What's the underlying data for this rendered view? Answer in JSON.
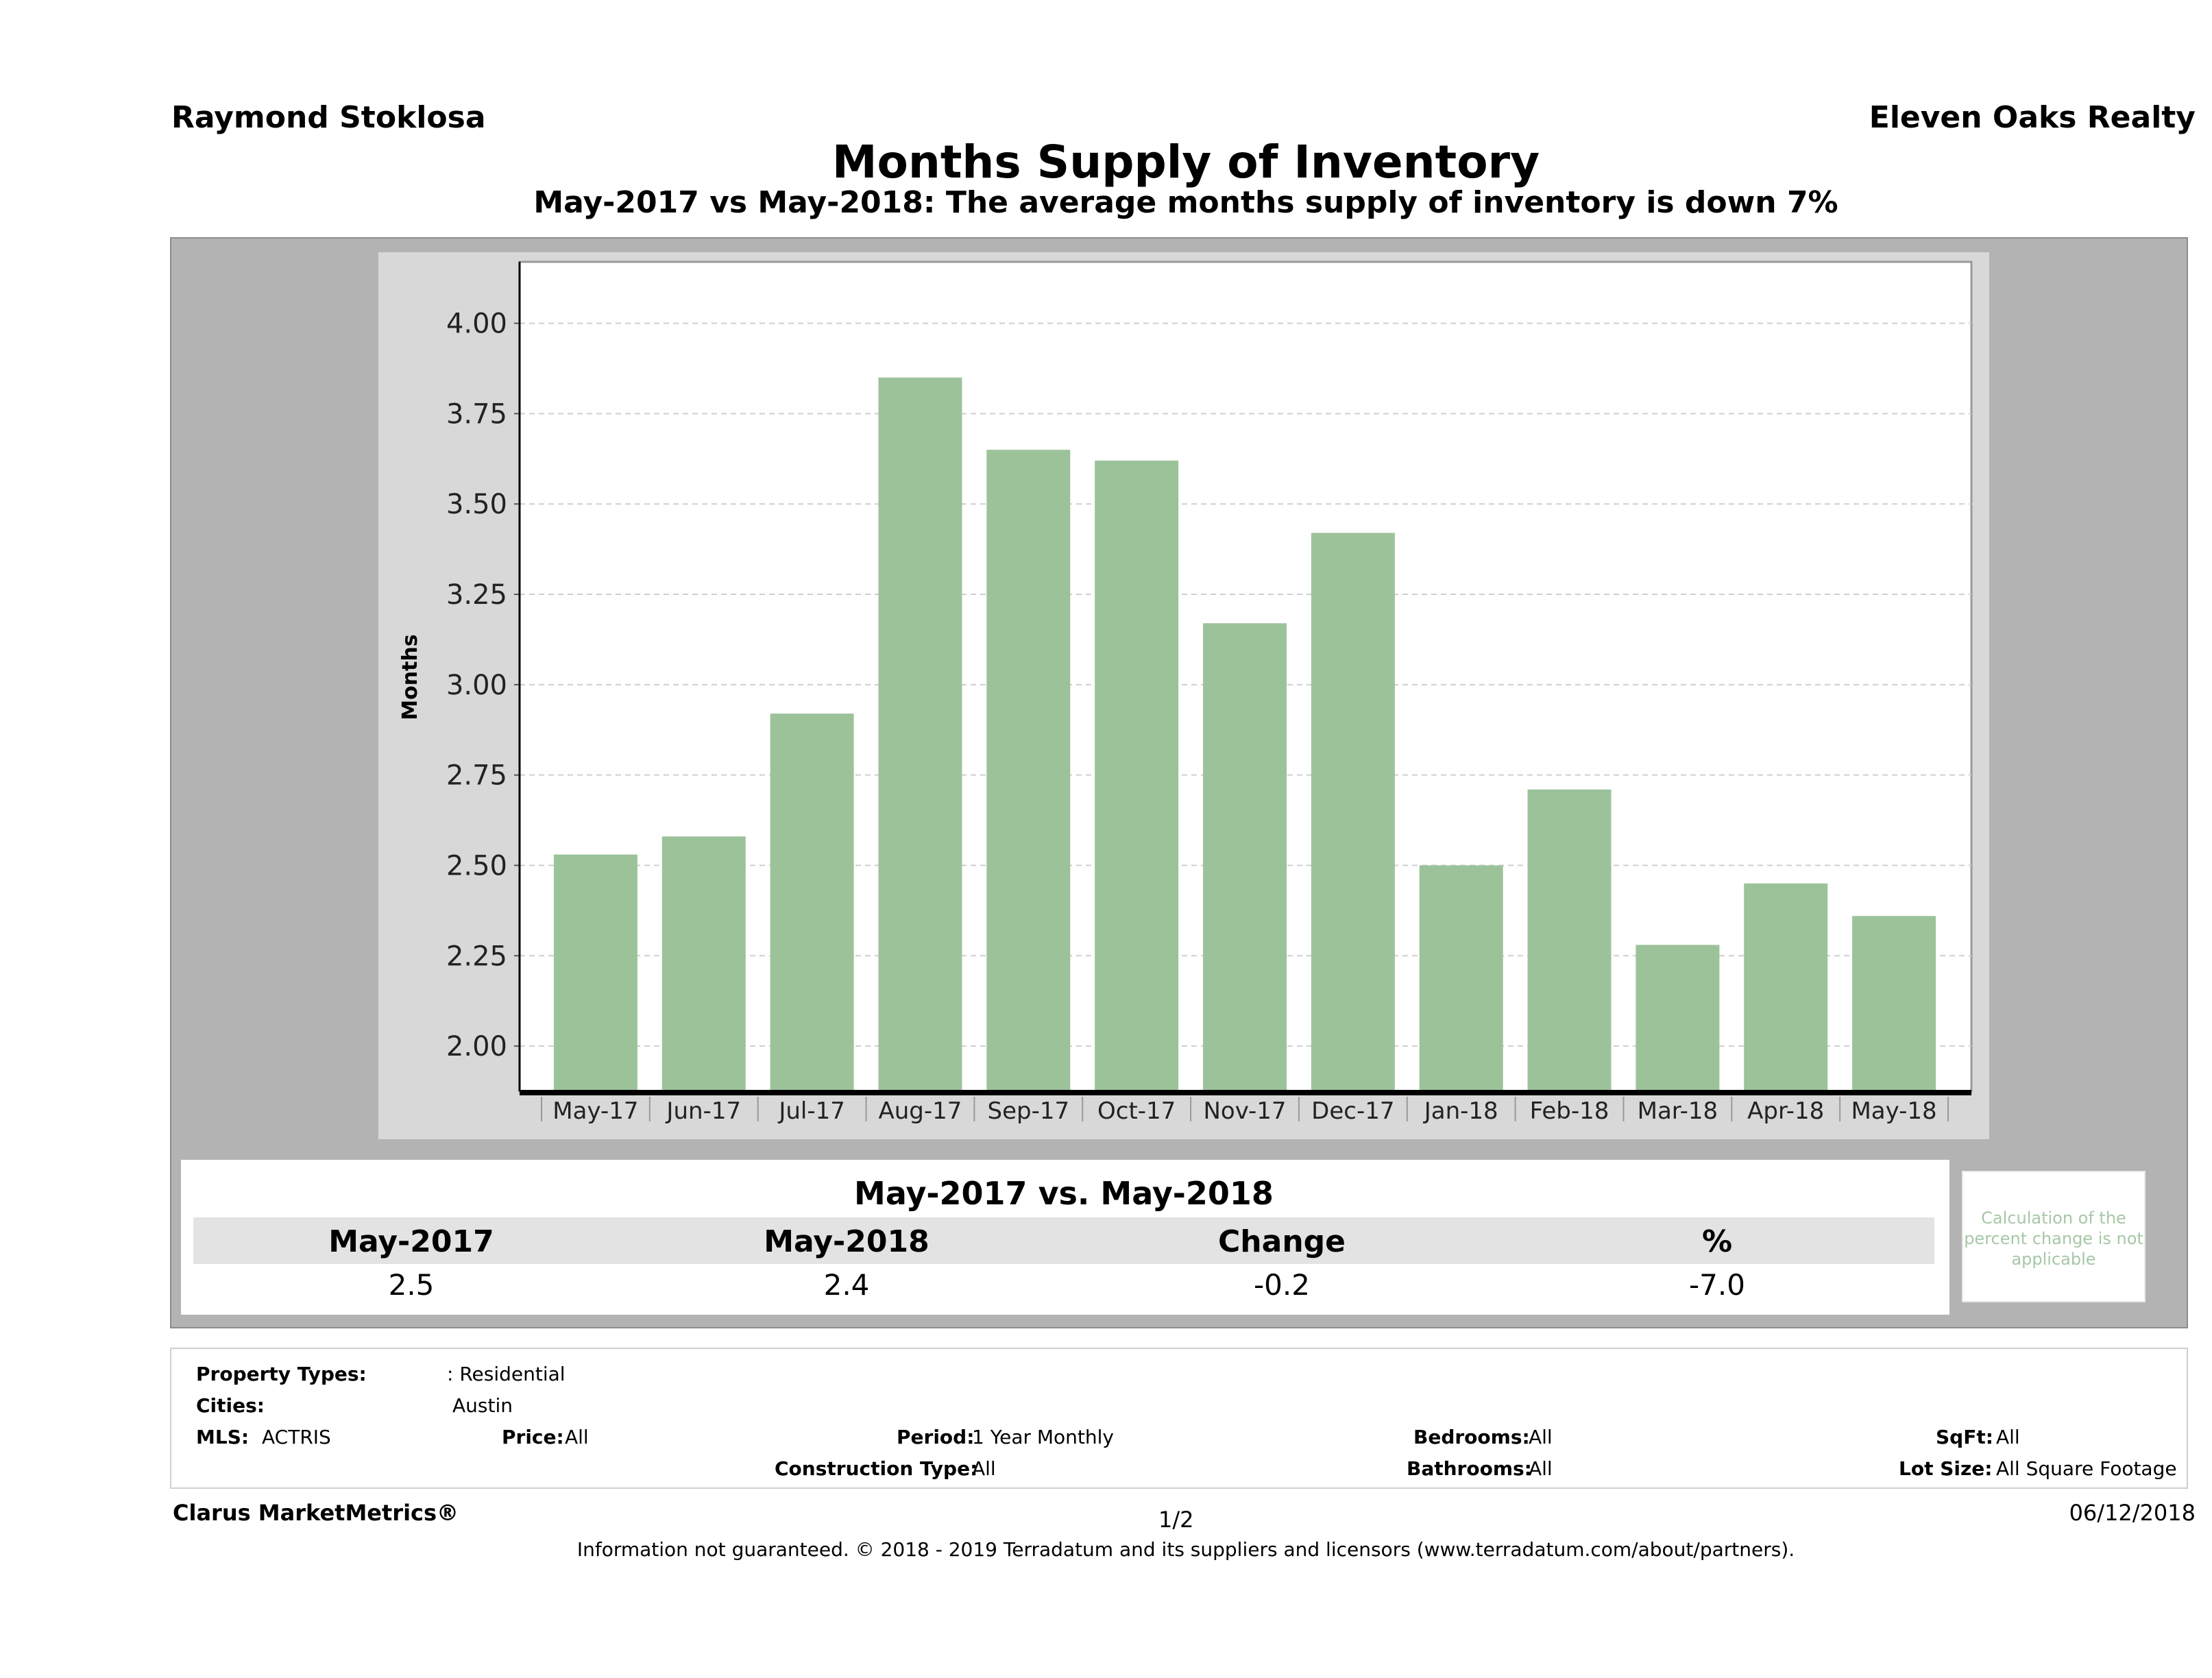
{
  "header": {
    "agent": "Raymond Stoklosa",
    "company": "Eleven Oaks Realty",
    "title": "Months Supply of Inventory",
    "subtitle": "May-2017 vs May-2018: The average months supply of inventory is down 7%"
  },
  "colors": {
    "bar": "#9cc29a",
    "panel": "#b3b3b3",
    "plot_bg": "#ffffff",
    "axis": "#000000",
    "note": "#a7c7a7"
  },
  "chart_data": {
    "type": "bar",
    "title": "Months Supply of Inventory",
    "xlabel": "",
    "ylabel": "Months",
    "categories": [
      "May-17",
      "Jun-17",
      "Jul-17",
      "Aug-17",
      "Sep-17",
      "Oct-17",
      "Nov-17",
      "Dec-17",
      "Jan-18",
      "Feb-18",
      "Mar-18",
      "Apr-18",
      "May-18"
    ],
    "values": [
      2.53,
      2.58,
      2.92,
      3.85,
      3.65,
      3.62,
      3.17,
      3.42,
      2.5,
      2.71,
      2.28,
      2.45,
      2.36
    ],
    "yticks": [
      "2.00",
      "2.25",
      "2.50",
      "2.75",
      "3.00",
      "3.25",
      "3.50",
      "3.75",
      "4.00"
    ],
    "ylim": [
      1.875,
      4.17
    ],
    "grid": true,
    "legend": "none"
  },
  "comparison": {
    "title": "May-2017 vs. May-2018",
    "headers": [
      "May-2017",
      "May-2018",
      "Change",
      "%"
    ],
    "values": [
      "2.5",
      "2.4",
      "-0.2",
      "-7.0"
    ],
    "note": "Calculation of the percent change is not applicable"
  },
  "criteria": {
    "property_types_label": "Property Types:",
    "property_types_value": ": Residential",
    "cities_label": "Cities:",
    "cities_value": "Austin",
    "mls_label": "MLS:",
    "mls_value": "ACTRIS",
    "price_label": "Price:",
    "price_value": "All",
    "period_label": "Period:",
    "period_value": "1 Year Monthly",
    "construction_label": "Construction Type:",
    "construction_value": "All",
    "bedrooms_label": "Bedrooms:",
    "bedrooms_value": "All",
    "bathrooms_label": "Bathrooms:",
    "bathrooms_value": "All",
    "sqft_label": "SqFt:",
    "sqft_value": "All",
    "lotsize_label": "Lot Size:",
    "lotsize_value": "All Square Footage"
  },
  "footer": {
    "brand": "Clarus MarketMetrics®",
    "page": "1/2",
    "date": "06/12/2018",
    "disclaimer": "Information not guaranteed. © 2018 - 2019 Terradatum and its suppliers and licensors (www.terradatum.com/about/partners)."
  }
}
